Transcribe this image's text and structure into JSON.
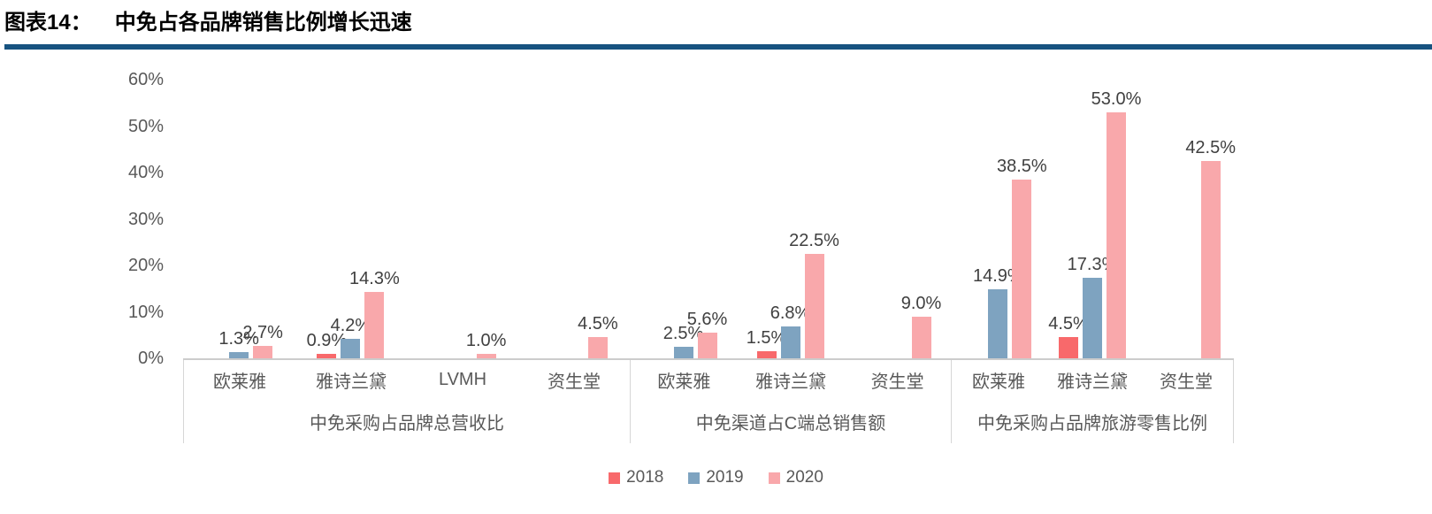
{
  "header": {
    "figure_label": "图表14：",
    "title": "中免占各品牌销售比例增长迅速"
  },
  "colors": {
    "title_rule": "#175380",
    "axis_line": "#cccccc",
    "box_border": "#d6d6d6",
    "tick_text": "#595959",
    "data_label": "#404040",
    "series_2018": "#F8696B",
    "series_2019": "#7EA3C0",
    "series_2020": "#F9A8AB"
  },
  "chart_data": {
    "type": "bar",
    "title": "图表14： 中免占各品牌销售比例增长迅速",
    "xlabel": "",
    "ylabel": "",
    "ylim": [
      0,
      60
    ],
    "ytick_labels": [
      "0%",
      "10%",
      "20%",
      "30%",
      "40%",
      "50%",
      "60%"
    ],
    "grid": false,
    "legend_position": "bottom",
    "series": [
      {
        "name": "2018",
        "color": "#F8696B"
      },
      {
        "name": "2019",
        "color": "#7EA3C0"
      },
      {
        "name": "2020",
        "color": "#F9A8AB"
      }
    ],
    "groups": [
      {
        "label": "中免采购占品牌总营收比",
        "categories": [
          {
            "name": "欧莱雅",
            "values": [
              null,
              1.3,
              2.7
            ],
            "labels": [
              "",
              "1.3%",
              "2.7%"
            ]
          },
          {
            "name": "雅诗兰黛",
            "values": [
              0.9,
              4.2,
              14.3
            ],
            "labels": [
              "0.9%",
              "4.2%",
              "14.3%"
            ]
          },
          {
            "name": "LVMH",
            "values": [
              null,
              null,
              1.0
            ],
            "labels": [
              "",
              "",
              "1.0%"
            ]
          },
          {
            "name": "资生堂",
            "values": [
              null,
              null,
              4.5
            ],
            "labels": [
              "",
              "",
              "4.5%"
            ]
          }
        ]
      },
      {
        "label": "中免渠道占C端总销售额",
        "categories": [
          {
            "name": "欧莱雅",
            "values": [
              null,
              2.5,
              5.6
            ],
            "labels": [
              "",
              "2.5%",
              "5.6%"
            ]
          },
          {
            "name": "雅诗兰黛",
            "values": [
              1.5,
              6.8,
              22.5
            ],
            "labels": [
              "1.5%",
              "6.8%",
              "22.5%"
            ]
          },
          {
            "name": "资生堂",
            "values": [
              null,
              null,
              9.0
            ],
            "labels": [
              "",
              "",
              "9.0%"
            ]
          }
        ]
      },
      {
        "label": "中免采购占品牌旅游零售比例",
        "categories": [
          {
            "name": "欧莱雅",
            "values": [
              null,
              14.9,
              38.5
            ],
            "labels": [
              "",
              "14.9%",
              "38.5%"
            ]
          },
          {
            "name": "雅诗兰黛",
            "values": [
              4.5,
              17.3,
              53.0
            ],
            "labels": [
              "4.5%",
              "17.3%",
              "53.0%"
            ]
          },
          {
            "name": "资生堂",
            "values": [
              null,
              null,
              42.5
            ],
            "labels": [
              "",
              "",
              "42.5%"
            ]
          }
        ]
      }
    ]
  }
}
